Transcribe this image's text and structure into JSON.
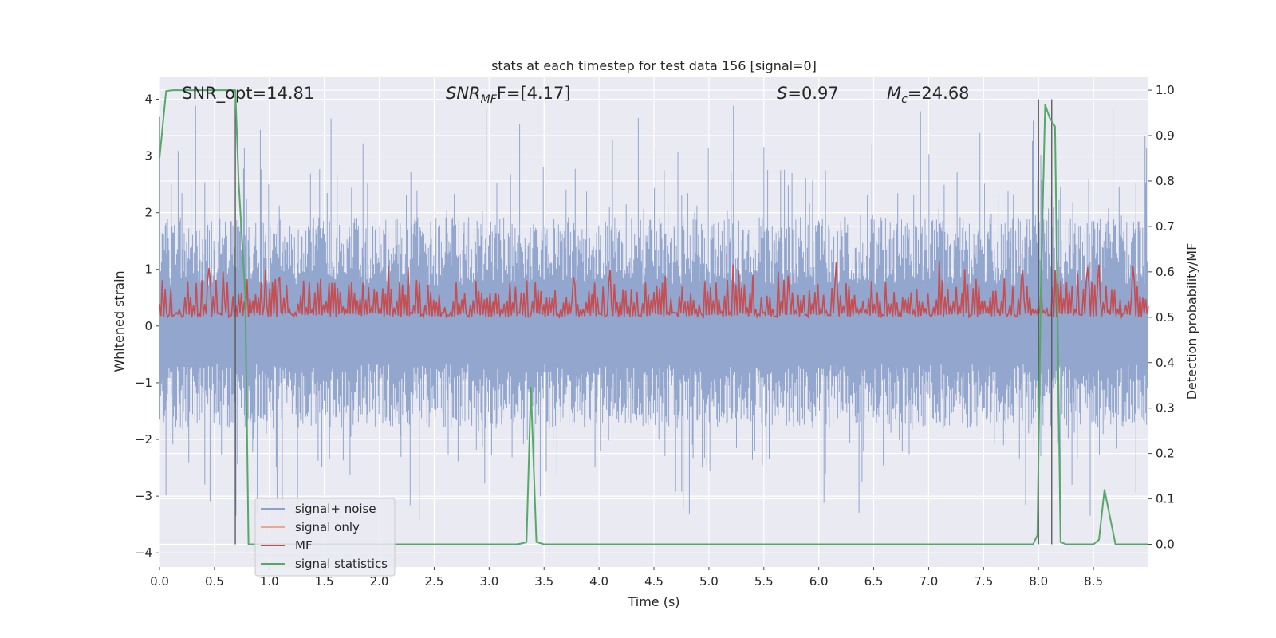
{
  "chart_data": {
    "type": "line",
    "title": "stats at each timestep for test data 156 [signal=0]",
    "xlabel": "Time (s)",
    "ylabel": "Whitened strain",
    "ylabel_right": "Detection probability/MF",
    "xlim": [
      0.0,
      9.0
    ],
    "ylim": [
      -4.25,
      4.4
    ],
    "ylim_right": [
      -0.05,
      1.03
    ],
    "grid": true,
    "legend_position": "lower-left",
    "x_ticks": [
      "0.0",
      "0.5",
      "1.0",
      "1.5",
      "2.0",
      "2.5",
      "3.0",
      "3.5",
      "4.0",
      "4.5",
      "5.0",
      "5.5",
      "6.0",
      "6.5",
      "7.0",
      "7.5",
      "8.0",
      "8.5"
    ],
    "y_ticks": [
      "4",
      "3",
      "2",
      "1",
      "0",
      "−1",
      "−2",
      "−3",
      "−4"
    ],
    "y_ticks_right": [
      "1.0",
      "0.9",
      "0.8",
      "0.7",
      "0.6",
      "0.5",
      "0.4",
      "0.3",
      "0.2",
      "0.1",
      "0.0"
    ],
    "annotations": {
      "snr_opt": "SNR_opt=14.81",
      "snr_mf_prefix": "SNR",
      "snr_mf_sub": "MF",
      "snr_mf_suffix": "F=[4.17]",
      "s_var": "S",
      "s_value": "=0.97",
      "mc_var": "M",
      "mc_sub": "c",
      "mc_value": "=24.68"
    },
    "vertical_markers": [
      0.69,
      8.0,
      8.12
    ],
    "series": [
      {
        "name": "signal+ noise",
        "color": "#8da2cb",
        "axis": "left",
        "description_values": "whitened noise, roughly -3.5 to 4.0",
        "envelope": {
          "typical_min": -1.5,
          "typical_max": 1.6,
          "peak_max": 4.0,
          "peak_min": -3.45
        }
      },
      {
        "name": "signal only",
        "color": "#eea68e",
        "axis": "left",
        "values": []
      },
      {
        "name": "MF",
        "color": "#c44e52",
        "axis": "right",
        "band": {
          "typical_min": 0.5,
          "typical_max": 0.585,
          "peak_max": 0.625
        }
      },
      {
        "name": "signal statistics",
        "color": "#55a868",
        "axis": "right",
        "x": [
          0.0,
          0.06,
          0.12,
          0.5,
          0.69,
          0.72,
          0.78,
          0.81,
          0.85,
          3.25,
          3.3,
          3.34,
          3.38,
          3.43,
          3.5,
          7.95,
          7.99,
          8.02,
          8.06,
          8.1,
          8.15,
          8.2,
          8.25,
          8.5,
          8.55,
          8.6,
          8.65,
          8.7,
          8.8,
          9.0
        ],
        "y": [
          0.85,
          0.998,
          1.0,
          1.0,
          1.0,
          0.8,
          0.55,
          0.0,
          0.0,
          0.0,
          0.002,
          0.005,
          0.345,
          0.005,
          0.0,
          0.0,
          0.02,
          0.55,
          0.968,
          0.94,
          0.92,
          0.005,
          0.0,
          0.0,
          0.01,
          0.12,
          0.06,
          0.0,
          0.0,
          0.0
        ]
      }
    ]
  }
}
